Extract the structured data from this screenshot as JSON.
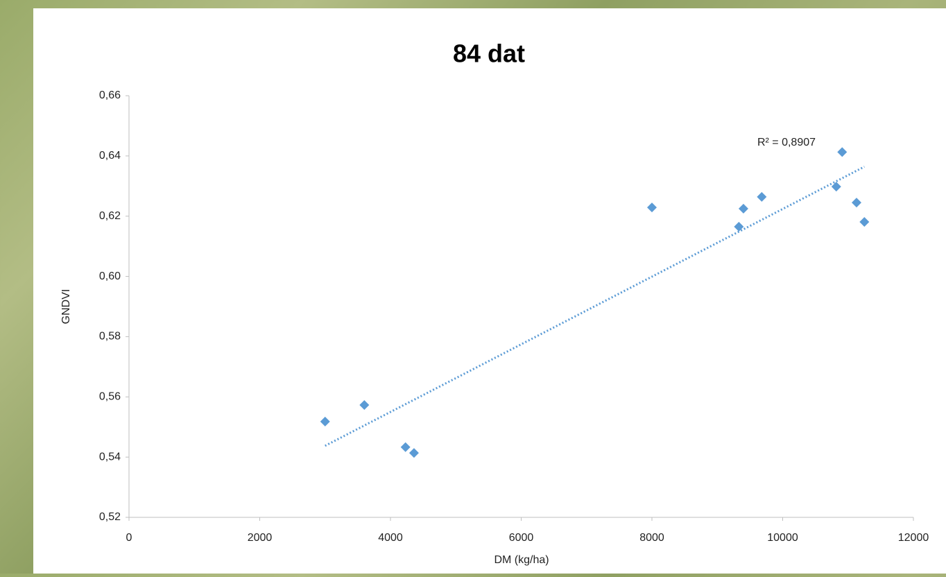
{
  "chart_data": {
    "type": "scatter",
    "title": "84 dat",
    "xlabel": "DM (kg/ha)",
    "ylabel": "GNDVI",
    "annotation": "R² = 0,8907",
    "trendline": true,
    "series": [
      {
        "name": "GNDVI",
        "color": "#5b9bd5",
        "x": [
          3000,
          3600,
          4230,
          4360,
          8000,
          9330,
          9400,
          9680,
          10820,
          10910,
          11130,
          11250
        ],
        "values": [
          0.5518,
          0.5573,
          0.5433,
          0.5414,
          0.6229,
          0.6165,
          0.6225,
          0.6264,
          0.6298,
          0.6413,
          0.6245,
          0.6181
        ]
      }
    ],
    "xlim": [
      0,
      12000
    ],
    "xticks": [
      0,
      2000,
      4000,
      6000,
      8000,
      10000,
      12000
    ],
    "ylim": [
      0.52,
      0.66
    ],
    "yticks": [
      {
        "value": 0.52,
        "label": "0,52"
      },
      {
        "value": 0.54,
        "label": "0,54"
      },
      {
        "value": 0.56,
        "label": "0,56"
      },
      {
        "value": 0.58,
        "label": "0,58"
      },
      {
        "value": 0.6,
        "label": "0,60"
      },
      {
        "value": 0.62,
        "label": "0,62"
      },
      {
        "value": 0.64,
        "label": "0,64"
      },
      {
        "value": 0.66,
        "label": "0,66"
      }
    ]
  }
}
